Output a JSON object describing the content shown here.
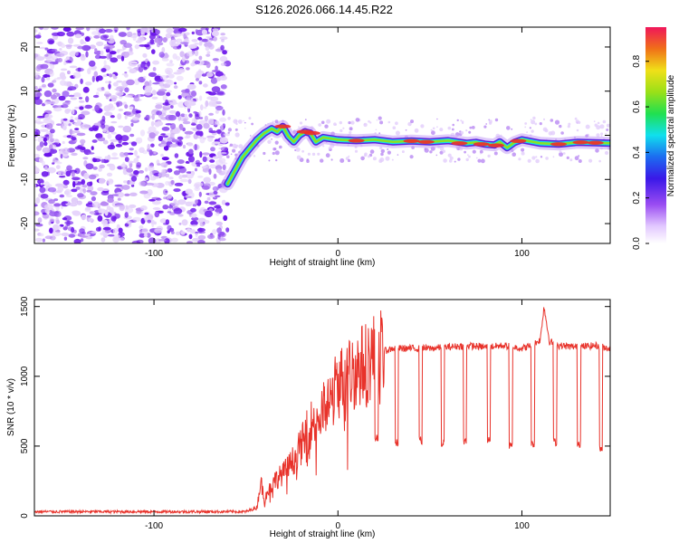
{
  "figure_title": "S126.2026.066.14.45.R22",
  "colors": {
    "snr_line": "#e8322a",
    "ridge_low": "#5a1ee0",
    "ridge_mid": "#16e0e6",
    "ridge_high": "#ee2a2a",
    "noise": "#7a2af0"
  },
  "chart_data": [
    {
      "type": "heatmap",
      "title": "S126.2026.066.14.45.R22",
      "xlabel": "Height of straight line (km)",
      "ylabel": "Frequency (Hz)",
      "xlim": [
        -165,
        148
      ],
      "ylim": [
        -24.5,
        24.5
      ],
      "xticks": [
        -100,
        0,
        100
      ],
      "yticks": [
        -20,
        -10,
        0,
        10,
        20
      ],
      "noise_region_x": [
        -165,
        -60
      ],
      "ridge": {
        "x": [
          -60,
          -56,
          -52,
          -48,
          -44,
          -40,
          -36,
          -33,
          -30,
          -27,
          -24,
          -21,
          -18,
          -15,
          -12,
          -8,
          0,
          10,
          20,
          30,
          40,
          50,
          60,
          70,
          75,
          80,
          85,
          88,
          92,
          96,
          100,
          110,
          120,
          130,
          140,
          148
        ],
        "y": [
          -11,
          -8,
          -5,
          -3,
          -1,
          0.5,
          1.5,
          0.8,
          2,
          -0.2,
          -1.5,
          0,
          0.8,
          0.5,
          -1.5,
          -0.5,
          -1.0,
          -1.2,
          -1.0,
          -1.5,
          -1.3,
          -1.5,
          -1.2,
          -1.8,
          -1.6,
          -2.0,
          -2.2,
          -1.5,
          -2.8,
          -1.6,
          -1.0,
          -1.8,
          -2.0,
          -1.6,
          -1.7,
          -1.8
        ]
      },
      "colorbar": {
        "label": "Normalized spectral amplitude",
        "range": [
          0,
          0.95
        ],
        "ticks": [
          "0.0",
          "0.2",
          "0.4",
          "0.6",
          "0.8"
        ],
        "tick_values": [
          0,
          0.2,
          0.4,
          0.6,
          0.8
        ]
      }
    },
    {
      "type": "line",
      "xlabel": "Height of straight line (km)",
      "ylabel": "SNR (10 * v/v)",
      "xlim": [
        -165,
        148
      ],
      "ylim": [
        0,
        1550
      ],
      "xticks": [
        -100,
        0,
        100
      ],
      "yticks": [
        0,
        500,
        1000,
        1500
      ],
      "series": [
        {
          "name": "SNR",
          "x": [
            -165,
            -50,
            -44,
            -42,
            -40,
            -35,
            -30,
            -25,
            -20,
            -15,
            -10,
            -5,
            0,
            5,
            10,
            15,
            20,
            25,
            30,
            40,
            50,
            60,
            70,
            80,
            90,
            100,
            105,
            110,
            112,
            115,
            120,
            130,
            140,
            148
          ],
          "values": [
            30,
            30,
            60,
            250,
            120,
            250,
            300,
            380,
            500,
            650,
            720,
            800,
            950,
            1000,
            1050,
            1100,
            1150,
            1180,
            1200,
            1200,
            1200,
            1210,
            1220,
            1210,
            1220,
            1200,
            1220,
            1260,
            1500,
            1250,
            1220,
            1210,
            1220,
            1200
          ]
        }
      ],
      "dips": [
        {
          "x": 21,
          "y": 560
        },
        {
          "x": 32,
          "y": 520
        },
        {
          "x": 45,
          "y": 540
        },
        {
          "x": 57,
          "y": 520
        },
        {
          "x": 69,
          "y": 530
        },
        {
          "x": 82,
          "y": 540
        },
        {
          "x": 94,
          "y": 500
        },
        {
          "x": 106,
          "y": 520
        },
        {
          "x": 118,
          "y": 530
        },
        {
          "x": 131,
          "y": 520
        },
        {
          "x": 143,
          "y": 480
        }
      ]
    }
  ]
}
